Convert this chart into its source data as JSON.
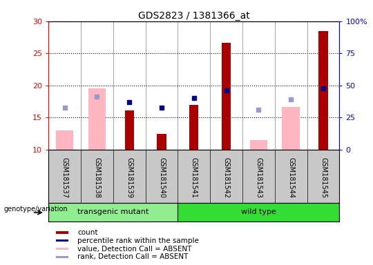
{
  "title": "GDS2823 / 1381366_at",
  "samples": [
    "GSM181537",
    "GSM181538",
    "GSM181539",
    "GSM181540",
    "GSM181541",
    "GSM181542",
    "GSM181543",
    "GSM181544",
    "GSM181545"
  ],
  "count_values": [
    null,
    null,
    16.1,
    12.5,
    17.0,
    26.6,
    null,
    null,
    28.5
  ],
  "count_absent_values": [
    13.0,
    19.5,
    null,
    null,
    null,
    null,
    11.5,
    16.7,
    null
  ],
  "percentile_rank": [
    null,
    null,
    17.4,
    16.5,
    18.0,
    19.2,
    null,
    null,
    19.5
  ],
  "rank_absent": [
    16.5,
    18.3,
    null,
    null,
    null,
    null,
    16.2,
    17.8,
    null
  ],
  "ylim_left": [
    10,
    30
  ],
  "ylim_right": [
    0,
    100
  ],
  "yticks_left": [
    10,
    15,
    20,
    25,
    30
  ],
  "yticks_right": [
    0,
    25,
    50,
    75,
    100
  ],
  "count_color": "#AA0000",
  "count_absent_color": "#FFB6C1",
  "rank_color": "#00008B",
  "rank_absent_color": "#9999CC",
  "transgenic_color": "#90EE90",
  "wildtype_color": "#33DD33",
  "sample_bg_color": "#C8C8C8",
  "legend_items": [
    {
      "label": "count",
      "color": "#AA0000"
    },
    {
      "label": "percentile rank within the sample",
      "color": "#00008B"
    },
    {
      "label": "value, Detection Call = ABSENT",
      "color": "#FFB6C1"
    },
    {
      "label": "rank, Detection Call = ABSENT",
      "color": "#9999CC"
    }
  ]
}
